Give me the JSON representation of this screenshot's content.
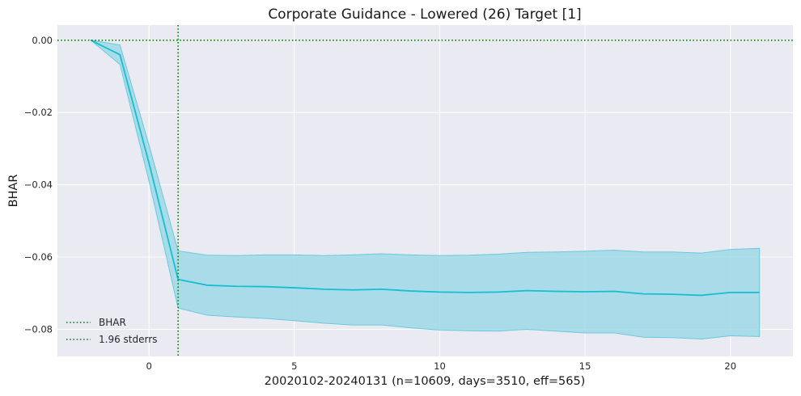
{
  "chart_data": {
    "type": "line",
    "title": "Corporate Guidance - Lowered (26) Target [1]",
    "xlabel": "20020102-20240131 (n=10609, days=3510, eff=565)",
    "ylabel": "BHAR",
    "xlim": [
      -3.15,
      22.15
    ],
    "ylim": [
      -0.0875,
      0.0042
    ],
    "xticks": [
      0,
      5,
      10,
      15,
      20
    ],
    "xtick_labels": [
      "0",
      "5",
      "10",
      "15",
      "20"
    ],
    "yticks": [
      0.0,
      -0.02,
      -0.04,
      -0.06,
      -0.08
    ],
    "ytick_labels": [
      "0.00",
      "−0.02",
      "−0.04",
      "−0.06",
      "−0.08"
    ],
    "grid": true,
    "legend_position": "lower-left",
    "x": [
      -2,
      -1,
      0,
      1,
      2,
      3,
      4,
      5,
      6,
      7,
      8,
      9,
      10,
      11,
      12,
      13,
      14,
      15,
      16,
      17,
      18,
      19,
      20,
      21
    ],
    "series": [
      {
        "name": "BHAR",
        "color": "#17becf",
        "values": [
          0.0,
          -0.004,
          -0.034,
          -0.0662,
          -0.0678,
          -0.0681,
          -0.0682,
          -0.0685,
          -0.0689,
          -0.0691,
          -0.0689,
          -0.0694,
          -0.0697,
          -0.0698,
          -0.0697,
          -0.0693,
          -0.0695,
          -0.0696,
          -0.0695,
          -0.0702,
          -0.0703,
          -0.0706,
          -0.0698,
          -0.0698
        ]
      }
    ],
    "band": {
      "name": "1.96 stderrs",
      "color": "#17becf",
      "upper": [
        0.0,
        -0.0013,
        -0.029,
        -0.0583,
        -0.0595,
        -0.0596,
        -0.0594,
        -0.0594,
        -0.0596,
        -0.0594,
        -0.0591,
        -0.0594,
        -0.0596,
        -0.0595,
        -0.0592,
        -0.0587,
        -0.0586,
        -0.0584,
        -0.0581,
        -0.0586,
        -0.0586,
        -0.0589,
        -0.0579,
        -0.0576
      ],
      "lower": [
        0.0,
        -0.0067,
        -0.039,
        -0.0741,
        -0.0761,
        -0.0766,
        -0.077,
        -0.0776,
        -0.0783,
        -0.0788,
        -0.0788,
        -0.0796,
        -0.0802,
        -0.0804,
        -0.0805,
        -0.08,
        -0.0805,
        -0.081,
        -0.081,
        -0.0822,
        -0.0823,
        -0.0827,
        -0.0818,
        -0.082
      ]
    },
    "reference_lines": [
      {
        "orientation": "horizontal",
        "value": 0.0,
        "color": "#008000",
        "style": "dotted"
      },
      {
        "orientation": "vertical",
        "value": 1,
        "color": "#008000",
        "style": "dotted"
      }
    ],
    "legend": [
      {
        "label": "BHAR",
        "color": "#008000",
        "style": "dotted"
      },
      {
        "label": "1.96 stderrs",
        "color": "#008000",
        "style": "dotted"
      }
    ]
  }
}
